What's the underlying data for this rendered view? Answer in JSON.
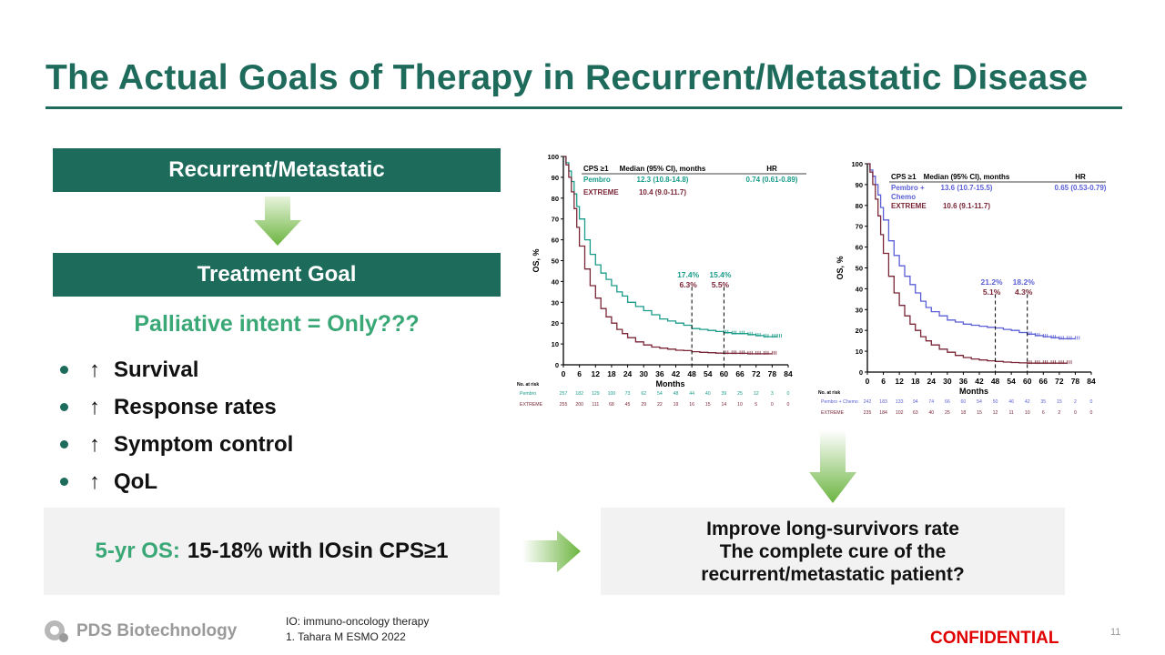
{
  "slide": {
    "title": "The Actual Goals of Therapy in Recurrent/Metastatic Disease",
    "box1": "Recurrent/Metastatic",
    "box2": "Treatment Goal",
    "intent": "Palliative intent = Only???",
    "goals": [
      {
        "arrow": "↑",
        "label": "Survival"
      },
      {
        "arrow": "↑",
        "label": "Response rates"
      },
      {
        "arrow": "↑",
        "label": "Symptom control"
      },
      {
        "arrow": "↑",
        "label": "QoL"
      }
    ],
    "os_label": "5-yr OS:",
    "os_value": "15-18% with IOsin CPS≥1",
    "improve": [
      "Improve long-survivors rate",
      "The complete cure of the",
      "recurrent/metastatic patient?"
    ],
    "footnote_1": "IO: immuno-oncology therapy",
    "footnote_2": "1. Tahara  M ESMO 2022",
    "confidential": "CONFIDENTIAL",
    "page": "11",
    "logo": "PDS Biotechnology"
  },
  "colors": {
    "teal": "#1c6b5b",
    "green_text": "#3aa876",
    "pembro": "#1a9c8a",
    "pembro_chemo": "#5b5fd6",
    "extreme": "#7a2636",
    "red": "#e00000"
  },
  "chart_data": [
    {
      "type": "line",
      "title": "CPS ≥1",
      "xlabel": "Months",
      "ylabel": "OS, %",
      "xlim": [
        0,
        84
      ],
      "ylim": [
        0,
        100
      ],
      "xticks": [
        "0",
        "6",
        "12",
        "18",
        "24",
        "30",
        "36",
        "42",
        "48",
        "54",
        "60",
        "66",
        "72",
        "78",
        "84"
      ],
      "yticks": [
        "0",
        "10",
        "20",
        "30",
        "40",
        "50",
        "60",
        "70",
        "80",
        "90",
        "100"
      ],
      "header": {
        "group": "CPS ≥1",
        "median": "Median (95% CI), months",
        "hr": "HR"
      },
      "series": [
        {
          "name": "Pembro",
          "median": "12.3 (10.8-14.8)",
          "hr": "0.74 (0.61-0.89)",
          "color": "#1a9c8a",
          "x": [
            0,
            1,
            2,
            3,
            4,
            5,
            6,
            8,
            10,
            12,
            14,
            16,
            18,
            20,
            22,
            24,
            27,
            30,
            33,
            36,
            39,
            42,
            45,
            48,
            51,
            54,
            57,
            60,
            63,
            66,
            69,
            72,
            75,
            78,
            80
          ],
          "y": [
            100,
            97,
            93,
            88,
            82,
            76,
            70,
            60,
            53,
            48,
            44,
            41,
            38,
            35,
            33,
            30,
            28,
            26,
            24,
            22,
            21,
            20,
            19,
            17.4,
            17,
            16.5,
            16,
            15.4,
            15,
            15,
            14.5,
            14,
            13.5,
            13.5,
            13.5
          ]
        },
        {
          "name": "EXTREME",
          "median": "10.4 (9.0-11.7)",
          "color": "#7a2636",
          "x": [
            0,
            1,
            2,
            3,
            4,
            5,
            6,
            8,
            10,
            12,
            14,
            16,
            18,
            20,
            22,
            24,
            27,
            30,
            33,
            36,
            39,
            42,
            45,
            48,
            51,
            54,
            57,
            60,
            63,
            66,
            69,
            72,
            75,
            78
          ],
          "y": [
            100,
            96,
            90,
            83,
            75,
            66,
            57,
            46,
            38,
            32,
            27,
            23,
            20,
            17,
            15,
            13,
            11,
            9.5,
            8.5,
            8,
            7.5,
            7,
            6.8,
            6.3,
            6,
            5.8,
            5.6,
            5.5,
            5.5,
            5.5,
            5.3,
            5.3,
            5.3,
            5.3
          ]
        }
      ],
      "annotations": [
        {
          "x": 48,
          "top": "17.4%",
          "bottom": "6.3%"
        },
        {
          "x": 60,
          "top": "15.4%",
          "bottom": "5.5%"
        }
      ],
      "at_risk_label": "No. at risk",
      "at_risk": [
        {
          "name": "Pembro",
          "values": [
            "257",
            "182",
            "129",
            "100",
            "73",
            "62",
            "54",
            "48",
            "44",
            "40",
            "39",
            "25",
            "12",
            "3",
            "0"
          ]
        },
        {
          "name": "EXTREME",
          "values": [
            "255",
            "200",
            "111",
            "68",
            "45",
            "29",
            "22",
            "19",
            "16",
            "15",
            "14",
            "10",
            "5",
            "0",
            "0"
          ]
        }
      ]
    },
    {
      "type": "line",
      "title": "CPS ≥1",
      "xlabel": "Months",
      "ylabel": "OS, %",
      "xlim": [
        0,
        84
      ],
      "ylim": [
        0,
        100
      ],
      "xticks": [
        "0",
        "6",
        "12",
        "18",
        "24",
        "30",
        "36",
        "42",
        "48",
        "54",
        "60",
        "66",
        "72",
        "78",
        "84"
      ],
      "yticks": [
        "0",
        "10",
        "20",
        "30",
        "40",
        "50",
        "60",
        "70",
        "80",
        "90",
        "100"
      ],
      "header": {
        "group": "CPS ≥1",
        "median": "Median (95% CI), months",
        "hr": "HR"
      },
      "series": [
        {
          "name": "Pembro + Chemo",
          "name_line1": "Pembro +",
          "name_line2": "Chemo",
          "median": "13.6 (10.7-15.5)",
          "hr": "0.65 (0.53-0.79)",
          "color": "#5b5fd6",
          "x": [
            0,
            1,
            2,
            3,
            4,
            5,
            6,
            8,
            10,
            12,
            14,
            16,
            18,
            20,
            22,
            24,
            27,
            30,
            33,
            36,
            39,
            42,
            45,
            48,
            51,
            54,
            57,
            60,
            63,
            66,
            69,
            72,
            75,
            78
          ],
          "y": [
            100,
            97,
            94,
            90,
            85,
            79,
            73,
            63,
            56,
            51,
            46,
            42,
            38,
            34,
            31,
            29,
            27,
            25,
            24,
            23,
            22.5,
            22,
            21.5,
            21.2,
            20.5,
            20,
            19,
            18.2,
            17.5,
            17,
            16.5,
            16,
            16,
            16
          ]
        },
        {
          "name": "EXTREME",
          "median": "10.6 (9.1-11.7)",
          "color": "#7a2636",
          "x": [
            0,
            1,
            2,
            3,
            4,
            5,
            6,
            8,
            10,
            12,
            14,
            16,
            18,
            20,
            22,
            24,
            27,
            30,
            33,
            36,
            39,
            42,
            45,
            48,
            51,
            54,
            57,
            60,
            63,
            66,
            69,
            72,
            75
          ],
          "y": [
            100,
            96,
            90,
            83,
            75,
            66,
            57,
            46,
            38,
            32,
            27,
            23,
            20,
            17,
            15,
            13,
            11,
            9.5,
            8,
            7,
            6.3,
            5.8,
            5.4,
            5.1,
            4.8,
            4.6,
            4.4,
            4.3,
            4.3,
            4.3,
            4.3,
            4.3,
            4.3
          ]
        }
      ],
      "annotations": [
        {
          "x": 48,
          "top": "21.2%",
          "bottom": "5.1%"
        },
        {
          "x": 60,
          "top": "18.2%",
          "bottom": "4.3%"
        }
      ],
      "at_risk_label": "No. at risk",
      "at_risk": [
        {
          "name": "Pembro + Chemo",
          "values": [
            "242",
            "183",
            "133",
            "94",
            "74",
            "66",
            "60",
            "54",
            "50",
            "46",
            "42",
            "35",
            "15",
            "2",
            "0"
          ]
        },
        {
          "name": "EXTREME",
          "values": [
            "235",
            "184",
            "102",
            "63",
            "40",
            "25",
            "18",
            "15",
            "12",
            "11",
            "10",
            "6",
            "2",
            "0",
            "0"
          ]
        }
      ]
    }
  ]
}
